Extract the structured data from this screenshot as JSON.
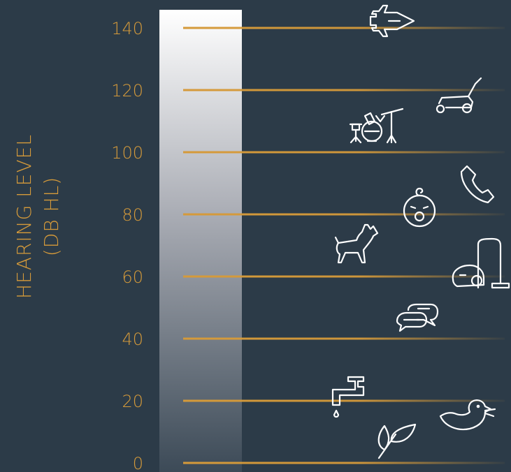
{
  "y_axis": {
    "label_line1": "HEARING LEVEL",
    "label_line2": "(DB HL)",
    "ticks": [
      "140",
      "120",
      "100",
      "80",
      "60",
      "40",
      "20",
      "0"
    ]
  },
  "colors": {
    "background": "#2c3b48",
    "accent": "#d59a3a",
    "icon": "#ffffff"
  },
  "icons": [
    {
      "name": "fighter-jet-icon",
      "level": 140
    },
    {
      "name": "lawn-mower-icon",
      "level": 118
    },
    {
      "name": "drum-kit-icon",
      "level": 108
    },
    {
      "name": "telephone-icon",
      "level": 90
    },
    {
      "name": "crying-baby-icon",
      "level": 82
    },
    {
      "name": "barking-dog-icon",
      "level": 73
    },
    {
      "name": "vacuum-cleaner-icon",
      "level": 65
    },
    {
      "name": "conversation-icon",
      "level": 46
    },
    {
      "name": "dripping-faucet-icon",
      "level": 20
    },
    {
      "name": "singing-bird-icon",
      "level": 14
    },
    {
      "name": "rustling-leaves-icon",
      "level": 7
    }
  ]
}
